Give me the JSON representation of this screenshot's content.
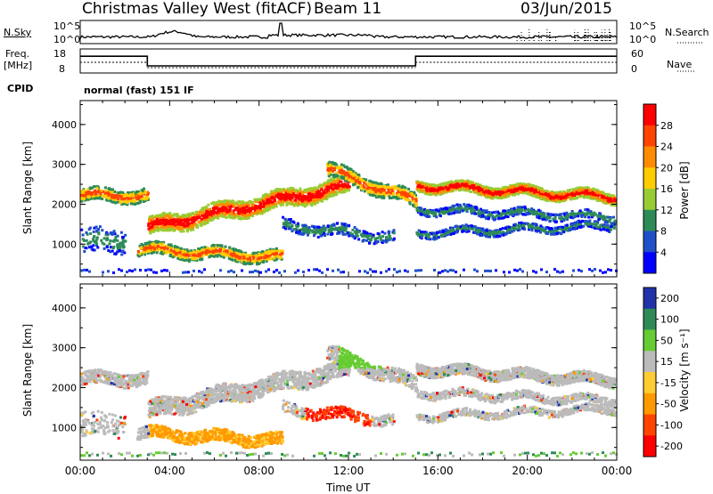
{
  "header": {
    "station": "Christmas Valley West (fitACF)",
    "beam": "Beam 11",
    "date": "03/Jun/2015"
  },
  "strips": {
    "nsky_label": "N.Sky",
    "nsky_ticks": [
      "10^5",
      "10^0"
    ],
    "nsearch_label": "N.Search",
    "nsearch_ticks": [
      "10^5",
      "10^0"
    ],
    "freq_label_1": "Freq.",
    "freq_label_2": "[MHz]",
    "freq_ticks": [
      "18",
      "8"
    ],
    "nave_label": "Nave",
    "nave_ticks": [
      "60",
      "0"
    ],
    "cpid_label": "CPID",
    "cpid_value": "normal (fast) 151 IF"
  },
  "chart_data": [
    {
      "type": "heatmap",
      "name": "power-panel",
      "ylabel": "Slant Range [km]",
      "yticks": [
        "4000",
        "3000",
        "2000",
        "1000"
      ],
      "ytick_values": [
        4000,
        3000,
        2000,
        1000
      ],
      "ylim": [
        180,
        4600
      ],
      "xlabel": "Time UT",
      "xticks": [
        "00:00",
        "04:00",
        "08:00",
        "12:00",
        "16:00",
        "20:00",
        "00:00"
      ],
      "xlim_hours": [
        0,
        24
      ],
      "colorbar_label": "Power [dB]",
      "colorbar_ticks": [
        "28",
        "24",
        "20",
        "16",
        "12",
        "8",
        "4"
      ],
      "colorbar_colors": [
        "#ff0000",
        "#ff4400",
        "#ff8c00",
        "#ffcc00",
        "#99cc33",
        "#2e8b57",
        "#2050c8",
        "#0000ff"
      ]
    },
    {
      "type": "heatmap",
      "name": "velocity-panel",
      "ylabel": "Slant Range [km]",
      "yticks": [
        "4000",
        "3000",
        "2000",
        "1000"
      ],
      "ytick_values": [
        4000,
        3000,
        2000,
        1000
      ],
      "ylim": [
        180,
        4600
      ],
      "colorbar_label": "Velocity [m s⁻¹]",
      "colorbar_ticks": [
        "200",
        "100",
        "50",
        "15",
        "-15",
        "-50",
        "-100",
        "-200"
      ],
      "colorbar_colors": [
        "#2233aa",
        "#2e8b57",
        "#66cc33",
        "#bbbbbb",
        "#ffcc33",
        "#ff9900",
        "#ff4400",
        "#ff0000"
      ]
    }
  ],
  "freq_series": {
    "x_hours": [
      0,
      3,
      3,
      15,
      15,
      24
    ],
    "y_mhz": [
      15,
      15,
      10.5,
      10.5,
      15,
      15
    ]
  }
}
